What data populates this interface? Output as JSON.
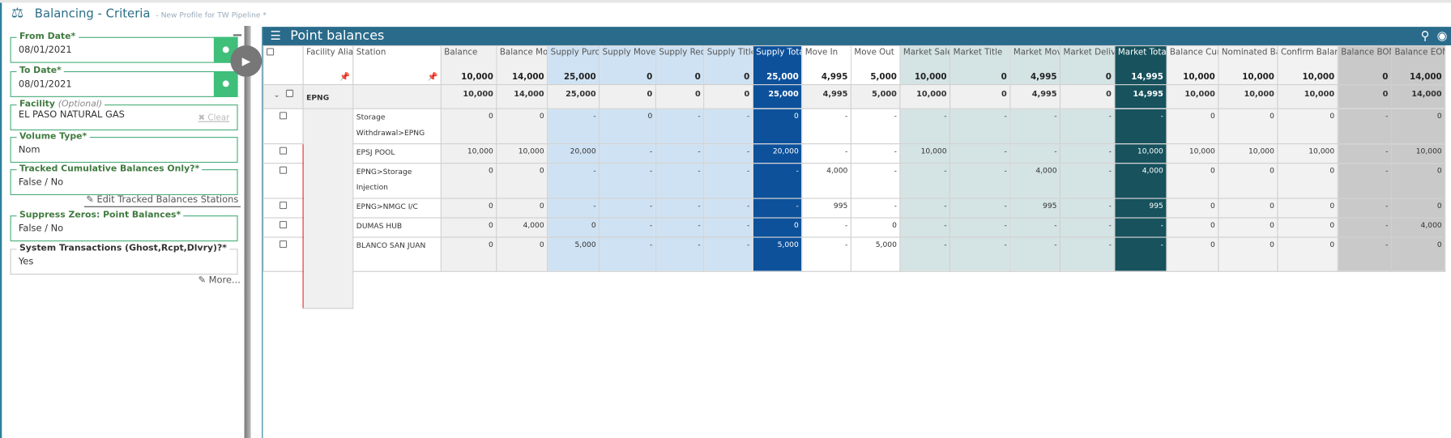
{
  "header": {
    "title": "Balancing - Criteria",
    "subtitle": "- New Profile for TW Pipeline *",
    "icon": "scale-icon"
  },
  "criteria": {
    "from_date": {
      "label": "From Date*",
      "value": "08/01/2021"
    },
    "to_date": {
      "label": "To Date*",
      "value": "08/01/2021"
    },
    "facility": {
      "label": "Facility",
      "optional": "(Optional)",
      "value": "EL PASO NATURAL GAS",
      "clear": "Clear"
    },
    "volume_type": {
      "label": "Volume Type*",
      "value": "Nom"
    },
    "tracked": {
      "label": "Tracked Cumulative Balances Only?*",
      "value": "False / No"
    },
    "edit_tracked": "Edit Tracked Balances Stations",
    "suppress": {
      "label": "Suppress Zeros: Point Balances*",
      "value": "False / No"
    },
    "system": {
      "label": "System Transactions (Ghost,Rcpt,Dlvry)?*",
      "value": "Yes"
    },
    "more": "More..."
  },
  "grid": {
    "title": "Point balances",
    "col_facility": "Facility Alias",
    "col_station": "Station",
    "columns": [
      {
        "label": "Balance",
        "total": "10,000",
        "cls": "c-bal"
      },
      {
        "label": "Balance Month",
        "total": "14,000",
        "cls": "c-bal"
      },
      {
        "label": "Supply Purchase",
        "total": "25,000",
        "cls": "c-sup"
      },
      {
        "label": "Supply Move In",
        "total": "0",
        "cls": "c-sup"
      },
      {
        "label": "Supply Receipt",
        "total": "0",
        "cls": "c-sup"
      },
      {
        "label": "Supply Title",
        "total": "0",
        "cls": "c-sup"
      },
      {
        "label": "Supply Total",
        "total": "25,000",
        "cls": "c-stot"
      },
      {
        "label": "Move In",
        "total": "4,995",
        "cls": "c-white"
      },
      {
        "label": "Move Out",
        "total": "5,000",
        "cls": "c-white"
      },
      {
        "label": "Market Sale",
        "total": "10,000",
        "cls": "c-mkt"
      },
      {
        "label": "Market Title",
        "total": "0",
        "cls": "c-mkt"
      },
      {
        "label": "Market Move Out",
        "total": "4,995",
        "cls": "c-mkt"
      },
      {
        "label": "Market Delivery",
        "total": "0",
        "cls": "c-mkt"
      },
      {
        "label": "Market Total",
        "total": "14,995",
        "cls": "c-mtot"
      },
      {
        "label": "Balance Cumulative",
        "total": "10,000",
        "cls": "c-cum"
      },
      {
        "label": "Nominated Balance",
        "total": "10,000",
        "cls": "c-cum"
      },
      {
        "label": "Confirm Balance",
        "total": "10,000",
        "cls": "c-cum"
      },
      {
        "label": "Balance BOM",
        "total": "0",
        "cls": "c-bom"
      },
      {
        "label": "Balance EOM",
        "total": "14,000",
        "cls": "c-bom"
      }
    ],
    "group": {
      "facility": "EPNG",
      "values": [
        "10,000",
        "14,000",
        "25,000",
        "0",
        "0",
        "0",
        "25,000",
        "4,995",
        "5,000",
        "10,000",
        "0",
        "4,995",
        "0",
        "14,995",
        "10,000",
        "10,000",
        "10,000",
        "0",
        "14,000"
      ]
    },
    "rows": [
      {
        "station": "Storage Withdrawal>EPNG",
        "values": [
          "0",
          "0",
          "-",
          "0",
          "-",
          "-",
          "0",
          "-",
          "-",
          "-",
          "-",
          "-",
          "-",
          "-",
          "0",
          "0",
          "0",
          "-",
          "0"
        ]
      },
      {
        "station": "EPSJ POOL",
        "values": [
          "10,000",
          "10,000",
          "20,000",
          "-",
          "-",
          "-",
          "20,000",
          "-",
          "-",
          "10,000",
          "-",
          "-",
          "-",
          "10,000",
          "10,000",
          "10,000",
          "10,000",
          "-",
          "10,000"
        ]
      },
      {
        "station": "EPNG>Storage Injection",
        "values": [
          "0",
          "0",
          "-",
          "-",
          "-",
          "-",
          "-",
          "4,000",
          "-",
          "-",
          "-",
          "4,000",
          "-",
          "4,000",
          "0",
          "0",
          "0",
          "-",
          "0"
        ]
      },
      {
        "station": "EPNG>NMGC I/C",
        "values": [
          "0",
          "0",
          "-",
          "-",
          "-",
          "-",
          "-",
          "995",
          "-",
          "-",
          "-",
          "995",
          "-",
          "995",
          "0",
          "0",
          "0",
          "-",
          "0"
        ]
      },
      {
        "station": "DUMAS HUB",
        "values": [
          "0",
          "4,000",
          "0",
          "-",
          "-",
          "-",
          "0",
          "-",
          "0",
          "-",
          "-",
          "-",
          "-",
          "-",
          "0",
          "0",
          "0",
          "-",
          "4,000"
        ]
      },
      {
        "station": "BLANCO SAN JUAN",
        "values": [
          "0",
          "0",
          "5,000",
          "-",
          "-",
          "-",
          "5,000",
          "-",
          "5,000",
          "-",
          "-",
          "-",
          "-",
          "-",
          "0",
          "0",
          "0",
          "-",
          "0"
        ]
      }
    ]
  },
  "colors": {
    "accent": "#2a6b8b",
    "green": "#3fbf7a",
    "supply_total": "#0d519b",
    "market_total": "#17525d"
  }
}
